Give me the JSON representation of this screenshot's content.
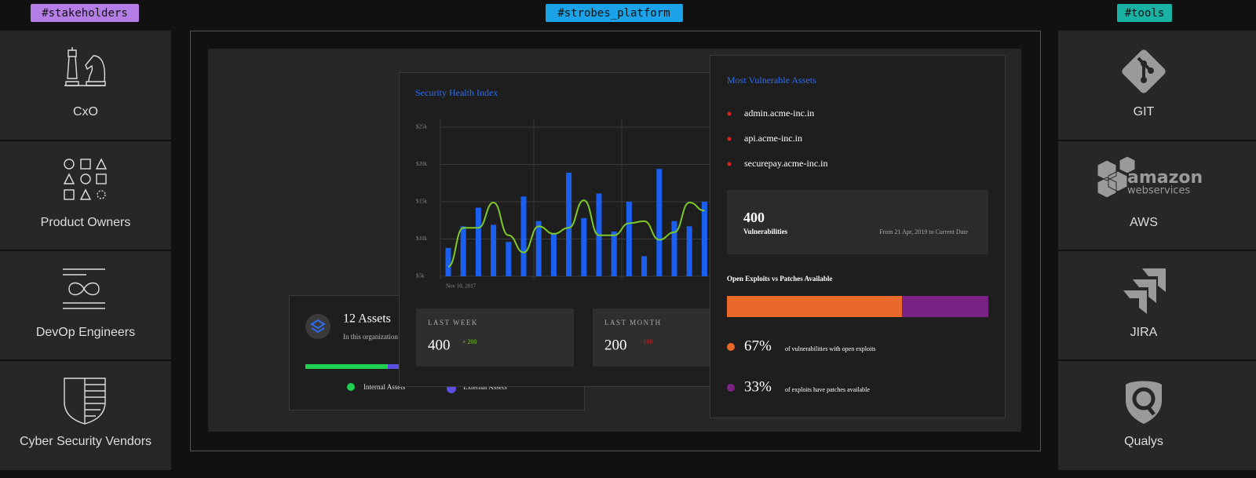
{
  "header": {
    "stakeholders_tag": "#stakeholders",
    "platform_tag": "#strobes_platform",
    "tools_tag": "#tools"
  },
  "stakeholders": [
    "CxO",
    "Product Owners",
    "DevOp Engineers",
    "Cyber Security Vendors"
  ],
  "tools": [
    "GIT",
    "AWS",
    "JIRA",
    "Qualys"
  ],
  "aws_logo": [
    "amazon",
    "webservices"
  ],
  "assets_card": {
    "title": "12 Assets",
    "subtitle": "In this organization",
    "legend": [
      "Internal Assets",
      "External Assets"
    ]
  },
  "chart_data": {
    "type": "bar",
    "title": "Security Health Index",
    "categories": [
      "Nov 10, 2017",
      null,
      null,
      null,
      null,
      null,
      null,
      null,
      null,
      null,
      null,
      null,
      null,
      null,
      null,
      null,
      null,
      null
    ],
    "series": [
      {
        "type": "bar",
        "color": "#1a5ff0",
        "values": [
          8.8,
          11.7,
          14.2,
          11.9,
          9.6,
          15.7,
          12.4,
          10.8,
          18.9,
          12.8,
          16.1,
          11.0,
          15.0,
          7.7,
          19.4,
          12.4,
          11.7,
          15.0
        ]
      },
      {
        "type": "line",
        "color": "#7ec82a",
        "values": [
          6.3,
          11.5,
          11.5,
          14.9,
          10.5,
          8.2,
          11.7,
          10.7,
          11.5,
          15.2,
          10.5,
          10.5,
          12.1,
          12.4,
          9.9,
          10.9,
          14.9,
          13.8
        ]
      }
    ],
    "ylim": [
      5,
      25
    ],
    "yticks": [
      {
        "value": 5,
        "label": "$5k"
      },
      {
        "value": 10,
        "label": "$10k"
      },
      {
        "value": 15,
        "label": "$15k"
      },
      {
        "value": 20,
        "label": "$20k"
      },
      {
        "value": 25,
        "label": "$25k"
      }
    ],
    "grid": true
  },
  "stats": [
    {
      "label": "LAST WEEK",
      "value": 400,
      "change": "+ 200"
    },
    {
      "label": "LAST MONTH",
      "value": 200,
      "change": "- 100"
    }
  ],
  "vulnerable_assets": {
    "title": "Most Vulnerable Assets",
    "items": [
      "admin.acme-inc.in",
      "api.acme-inc.in",
      "securepay.acme-inc.in"
    ]
  },
  "vulnerabilities": {
    "count": 400,
    "label": "Vulnerabilities",
    "period": "From 21 Apr, 2019 to Current Date"
  },
  "exploits": {
    "title": "Open Exploits vs Patches Available",
    "segments": [
      {
        "value": 67,
        "value_label": "67%",
        "description": "of vulnerabilities with open exploits",
        "color": "#e8692a"
      },
      {
        "value": 33,
        "value_label": "33%",
        "description": "of exploits have patches available",
        "color": "#7b2384"
      }
    ]
  }
}
